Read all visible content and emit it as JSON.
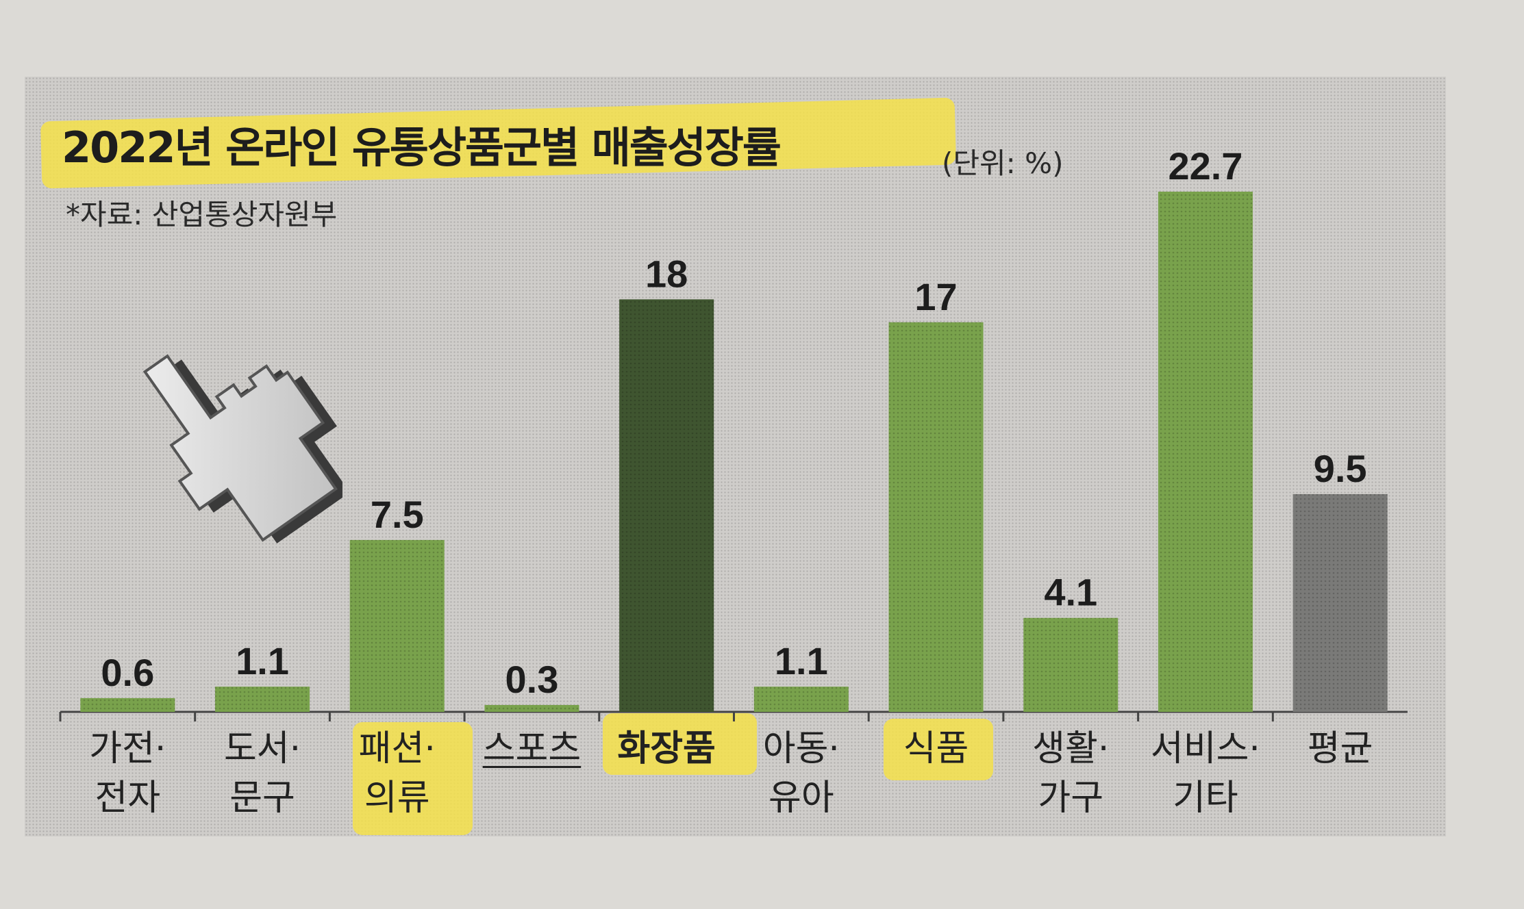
{
  "title": "2022년 온라인 유통상품군별 매출성장률",
  "unit": "(단위: %)",
  "source": "*자료: 산업통상자원부",
  "colors": {
    "bar_light": "#79a24c",
    "bar_dark": "#3f5530",
    "bar_average": "#7a7a78",
    "highlight": "#f4e04a"
  },
  "chart_data": {
    "type": "bar",
    "title": "2022년 온라인 유통상품군별 매출성장률",
    "ylabel": "",
    "unit": "%",
    "categories": [
      "가전·\n전자",
      "도서·\n문구",
      "패션·\n의류",
      "스포츠",
      "화장품",
      "아동·\n유아",
      "식품",
      "생활·\n가구",
      "서비스·\n기타",
      "평균"
    ],
    "values": [
      0.6,
      1.1,
      7.5,
      0.3,
      18,
      1.1,
      17,
      4.1,
      22.7,
      9.5
    ],
    "value_labels": [
      "0.6",
      "1.1",
      "7.5",
      "0.3",
      "18",
      "1.1",
      "17",
      "4.1",
      "22.7",
      "9.5"
    ],
    "bar_styles": [
      "light",
      "light",
      "light",
      "light",
      "dark",
      "light",
      "light",
      "light",
      "light",
      "average"
    ],
    "ylim": [
      0,
      22.7
    ],
    "grid": false,
    "legend": "none"
  },
  "icons": {
    "cursor": "pointing-hand-cursor-icon"
  }
}
